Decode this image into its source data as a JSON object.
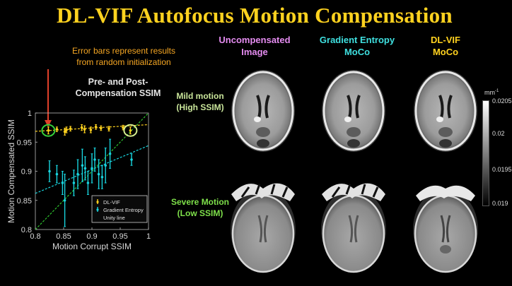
{
  "title": "DL-VIF Autofocus Motion Compensation",
  "annotation": {
    "line1": "Error bars represent results",
    "line2": "from random initialization"
  },
  "plot_title": {
    "line1": "Pre- and Post-",
    "line2": "Compensation SSIM"
  },
  "columns": [
    {
      "line1": "Uncompensated",
      "line2": "Image",
      "color": "#e48cf0"
    },
    {
      "line1": "Gradient Entropy",
      "line2": "MoCo",
      "color": "#3fe0e0"
    },
    {
      "line1": "DL-VIF",
      "line2": "MoCo",
      "color": "#ffd21f"
    }
  ],
  "rows": [
    {
      "line1": "Mild motion",
      "line2": "(High SSIM)",
      "color": "#c9e59a"
    },
    {
      "line1": "Severe Motion",
      "line2": "(Low SSIM)",
      "color": "#7ee04a"
    }
  ],
  "colorbar": {
    "unit": "mm",
    "unit_sup": "-1",
    "ticks": [
      "0.0205",
      "0.02",
      "0.0195",
      "0.019"
    ]
  },
  "chart_data": {
    "type": "scatter",
    "xlabel": "Motion Corrupt SSIM",
    "ylabel": "Motion Compensated SSIM",
    "xlim": [
      0.8,
      1.0
    ],
    "ylim": [
      0.8,
      1.0
    ],
    "xticks": [
      "0.8",
      "0.85",
      "0.9",
      "0.95",
      "1"
    ],
    "yticks": [
      "0.8",
      "0.85",
      "0.9",
      "0.95",
      "1"
    ],
    "legend": {
      "position": "bottom-right",
      "entries": [
        "DL-VIF",
        "Gradient Entropy",
        "Unity line"
      ]
    },
    "series": [
      {
        "name": "DL-VIF",
        "color": "#ffd21f",
        "points": [
          {
            "x": 0.823,
            "y": 0.97,
            "e": 0.006
          },
          {
            "x": 0.838,
            "y": 0.972,
            "e": 0.004
          },
          {
            "x": 0.852,
            "y": 0.968,
            "e": 0.006
          },
          {
            "x": 0.855,
            "y": 0.971,
            "e": 0.005
          },
          {
            "x": 0.862,
            "y": 0.973,
            "e": 0.004
          },
          {
            "x": 0.882,
            "y": 0.975,
            "e": 0.005
          },
          {
            "x": 0.887,
            "y": 0.972,
            "e": 0.006
          },
          {
            "x": 0.898,
            "y": 0.971,
            "e": 0.005
          },
          {
            "x": 0.907,
            "y": 0.976,
            "e": 0.004
          },
          {
            "x": 0.916,
            "y": 0.974,
            "e": 0.004
          },
          {
            "x": 0.93,
            "y": 0.973,
            "e": 0.004
          },
          {
            "x": 0.955,
            "y": 0.975,
            "e": 0.004
          },
          {
            "x": 0.968,
            "y": 0.97,
            "e": 0.006
          }
        ]
      },
      {
        "name": "Gradient Entropy",
        "color": "#18d4de",
        "points": [
          {
            "x": 0.825,
            "y": 0.9,
            "e": 0.018
          },
          {
            "x": 0.838,
            "y": 0.895,
            "e": 0.015
          },
          {
            "x": 0.848,
            "y": 0.88,
            "e": 0.02
          },
          {
            "x": 0.852,
            "y": 0.85,
            "e": 0.045
          },
          {
            "x": 0.868,
            "y": 0.88,
            "e": 0.022
          },
          {
            "x": 0.875,
            "y": 0.895,
            "e": 0.025
          },
          {
            "x": 0.883,
            "y": 0.91,
            "e": 0.028
          },
          {
            "x": 0.888,
            "y": 0.905,
            "e": 0.02
          },
          {
            "x": 0.893,
            "y": 0.88,
            "e": 0.02
          },
          {
            "x": 0.9,
            "y": 0.905,
            "e": 0.025
          },
          {
            "x": 0.905,
            "y": 0.92,
            "e": 0.02
          },
          {
            "x": 0.912,
            "y": 0.895,
            "e": 0.025
          },
          {
            "x": 0.918,
            "y": 0.89,
            "e": 0.02
          },
          {
            "x": 0.924,
            "y": 0.91,
            "e": 0.03
          },
          {
            "x": 0.932,
            "y": 0.93,
            "e": 0.025
          },
          {
            "x": 0.97,
            "y": 0.92,
            "e": 0.01
          }
        ]
      }
    ],
    "trend_lines": [
      {
        "series": "DL-VIF",
        "color": "#ffd21f",
        "x": [
          0.8,
          1.0
        ],
        "y": [
          0.9685,
          0.98
        ]
      },
      {
        "series": "Gradient Entropy",
        "color": "#18d4de",
        "x": [
          0.8,
          1.0
        ],
        "y": [
          0.862,
          0.944
        ]
      },
      {
        "series": "Unity line",
        "color": "#2ec42e",
        "x": [
          0.8,
          1.0
        ],
        "y": [
          0.8,
          1.0
        ]
      }
    ]
  }
}
